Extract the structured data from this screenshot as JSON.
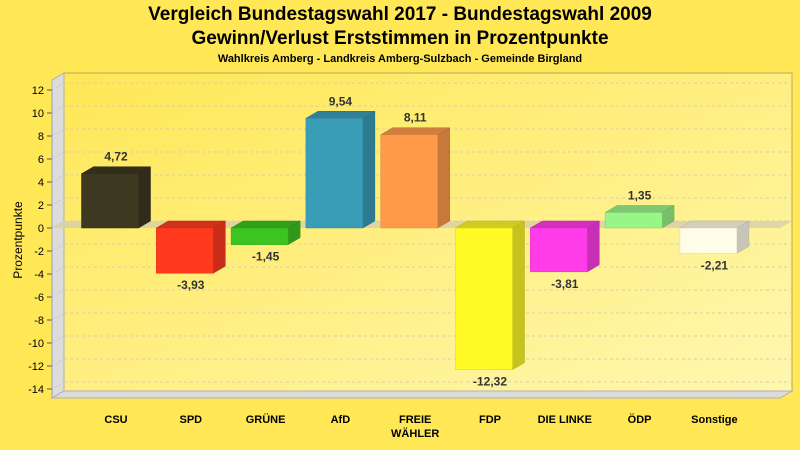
{
  "chart_data": {
    "type": "bar",
    "title": "Vergleich Bundestagswahl 2017 - Bundestagswahl 2009",
    "subtitle_line2": "Gewinn/Verlust Erststimmen in Prozentpunkte",
    "subtitle": "Wahlkreis Amberg - Landkreis Amberg-Sulzbach - Gemeinde Birgland",
    "xlabel": "",
    "ylabel": "Prozentpunkte",
    "ylim": [
      -14,
      12
    ],
    "yticks": [
      12,
      10,
      8,
      6,
      4,
      2,
      0,
      -2,
      -4,
      -6,
      -8,
      -10,
      -12,
      -14
    ],
    "grid": true,
    "categories": [
      "CSU",
      "SPD",
      "GRÜNE",
      "AfD",
      "FREIE WÄHLER",
      "FDP",
      "DIE LINKE",
      "ÖDP",
      "Sonstige"
    ],
    "category_lines": [
      [
        "CSU"
      ],
      [
        "SPD"
      ],
      [
        "GRÜNE"
      ],
      [
        "AfD"
      ],
      [
        "FREIE",
        "WÄHLER"
      ],
      [
        "FDP"
      ],
      [
        "DIE LINKE"
      ],
      [
        "ÖDP"
      ],
      [
        "Sonstige"
      ]
    ],
    "values": [
      4.72,
      -3.93,
      -1.45,
      9.54,
      8.11,
      -12.32,
      -3.81,
      1.35,
      -2.21
    ],
    "value_labels": [
      "4,72",
      "-3,93",
      "-1,45",
      "9,54",
      "8,11",
      "-12,32",
      "-3,81",
      "1,35",
      "-2,21"
    ],
    "colors": [
      "#3D3820",
      "#FF3A1F",
      "#3DC420",
      "#3A9DB8",
      "#FF9A4A",
      "#FFFA26",
      "#FF3CE8",
      "#98F588",
      "#FFFCE8"
    ],
    "background_color": "#FFE755"
  }
}
